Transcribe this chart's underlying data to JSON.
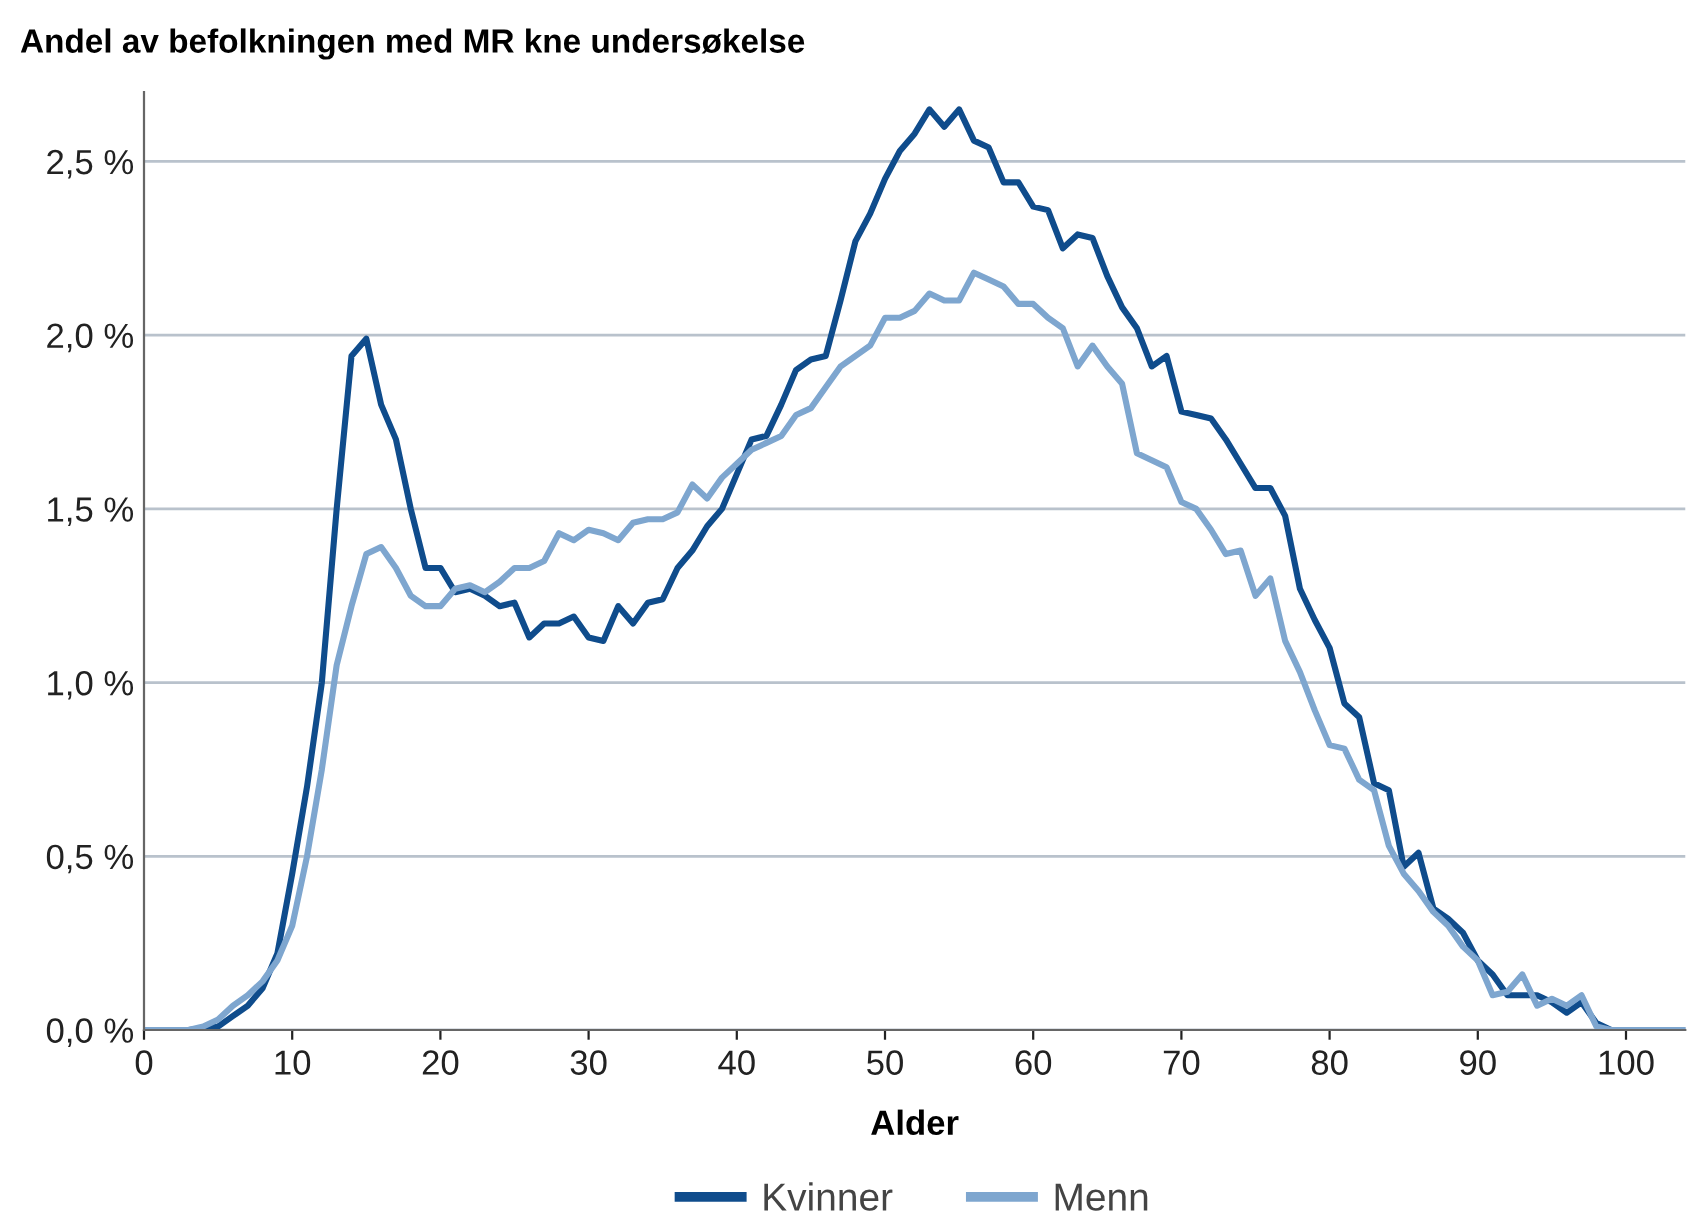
{
  "chart_data": {
    "type": "line",
    "title": "Andel av befolkningen med MR kne undersøkelse",
    "xlabel": "Alder",
    "x": [
      0,
      1,
      2,
      3,
      4,
      5,
      6,
      7,
      8,
      9,
      10,
      11,
      12,
      13,
      14,
      15,
      16,
      17,
      18,
      19,
      20,
      21,
      22,
      23,
      24,
      25,
      26,
      27,
      28,
      29,
      30,
      31,
      32,
      33,
      34,
      35,
      36,
      37,
      38,
      39,
      40,
      41,
      42,
      43,
      44,
      45,
      46,
      47,
      48,
      49,
      50,
      51,
      52,
      53,
      54,
      55,
      56,
      57,
      58,
      59,
      60,
      61,
      62,
      63,
      64,
      65,
      66,
      67,
      68,
      69,
      70,
      71,
      72,
      73,
      74,
      75,
      76,
      77,
      78,
      79,
      80,
      81,
      82,
      83,
      84,
      85,
      86,
      87,
      88,
      89,
      90,
      91,
      92,
      93,
      94,
      95,
      96,
      97,
      98,
      99,
      100,
      101,
      102,
      103,
      104
    ],
    "series": [
      {
        "name": "Kvinner",
        "color": "#0f4c8c",
        "values": [
          0,
          0,
          0,
          0,
          0.005,
          0.01,
          0.04,
          0.07,
          0.12,
          0.22,
          0.45,
          0.7,
          1.0,
          1.5,
          1.94,
          1.99,
          1.8,
          1.7,
          1.5,
          1.33,
          1.33,
          1.26,
          1.27,
          1.25,
          1.22,
          1.23,
          1.13,
          1.17,
          1.17,
          1.19,
          1.13,
          1.12,
          1.22,
          1.17,
          1.23,
          1.24,
          1.33,
          1.38,
          1.45,
          1.5,
          1.6,
          1.7,
          1.71,
          1.8,
          1.9,
          1.93,
          1.94,
          2.1,
          2.27,
          2.35,
          2.45,
          2.53,
          2.58,
          2.65,
          2.6,
          2.65,
          2.56,
          2.54,
          2.44,
          2.44,
          2.37,
          2.36,
          2.25,
          2.29,
          2.28,
          2.17,
          2.08,
          2.02,
          1.91,
          1.94,
          1.78,
          1.77,
          1.76,
          1.7,
          1.63,
          1.56,
          1.56,
          1.48,
          1.27,
          1.18,
          1.1,
          0.94,
          0.9,
          0.71,
          0.69,
          0.47,
          0.51,
          0.35,
          0.32,
          0.28,
          0.2,
          0.16,
          0.1,
          0.1,
          0.1,
          0.08,
          0.05,
          0.08,
          0.02,
          0,
          0,
          0,
          0,
          0,
          0
        ]
      },
      {
        "name": "Menn",
        "color": "#7ea6cf",
        "values": [
          0,
          0,
          0,
          0,
          0.01,
          0.03,
          0.07,
          0.1,
          0.14,
          0.2,
          0.3,
          0.5,
          0.75,
          1.05,
          1.22,
          1.37,
          1.39,
          1.33,
          1.25,
          1.22,
          1.22,
          1.27,
          1.28,
          1.26,
          1.29,
          1.33,
          1.33,
          1.35,
          1.43,
          1.41,
          1.44,
          1.43,
          1.41,
          1.46,
          1.47,
          1.47,
          1.49,
          1.57,
          1.53,
          1.59,
          1.63,
          1.67,
          1.69,
          1.71,
          1.77,
          1.79,
          1.85,
          1.91,
          1.94,
          1.97,
          2.05,
          2.05,
          2.07,
          2.12,
          2.1,
          2.1,
          2.18,
          2.16,
          2.14,
          2.09,
          2.09,
          2.05,
          2.02,
          1.91,
          1.97,
          1.91,
          1.86,
          1.66,
          1.64,
          1.62,
          1.52,
          1.5,
          1.44,
          1.37,
          1.38,
          1.25,
          1.3,
          1.12,
          1.03,
          0.92,
          0.82,
          0.81,
          0.72,
          0.69,
          0.53,
          0.45,
          0.4,
          0.34,
          0.3,
          0.24,
          0.2,
          0.1,
          0.11,
          0.16,
          0.07,
          0.09,
          0.07,
          0.1,
          0.01,
          0,
          0,
          0,
          0,
          0,
          0
        ]
      }
    ],
    "xlim": [
      0,
      104
    ],
    "xticks": [
      0,
      10,
      20,
      30,
      40,
      50,
      60,
      70,
      80,
      90,
      100
    ],
    "ylim": [
      0,
      2.7
    ],
    "yticks": [
      {
        "value": 0,
        "label": "0,0 %"
      },
      {
        "value": 0.5,
        "label": "0,5 %"
      },
      {
        "value": 1.0,
        "label": "1,0 %"
      },
      {
        "value": 1.5,
        "label": "1,5 %"
      },
      {
        "value": 2.0,
        "label": "2,0 %"
      },
      {
        "value": 2.5,
        "label": "2,5 %"
      }
    ],
    "grid": "y",
    "legend": "bottom",
    "marker": "none",
    "line_style": "solid"
  }
}
